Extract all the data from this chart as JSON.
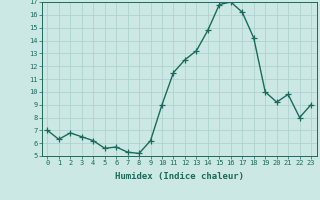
{
  "xlabel": "Humidex (Indice chaleur)",
  "x": [
    0,
    1,
    2,
    3,
    4,
    5,
    6,
    7,
    8,
    9,
    10,
    11,
    12,
    13,
    14,
    15,
    16,
    17,
    18,
    19,
    20,
    21,
    22,
    23
  ],
  "y": [
    7.0,
    6.3,
    6.8,
    6.5,
    6.2,
    5.6,
    5.7,
    5.3,
    5.2,
    6.2,
    9.0,
    11.5,
    12.5,
    13.2,
    14.8,
    16.8,
    17.0,
    16.2,
    14.2,
    10.0,
    9.2,
    9.8,
    8.0,
    9.0
  ],
  "ylim": [
    5,
    17
  ],
  "yticks": [
    5,
    6,
    7,
    8,
    9,
    10,
    11,
    12,
    13,
    14,
    15,
    16,
    17
  ],
  "line_color": "#1a6b5a",
  "marker": "+",
  "bg_color": "#cce8e4",
  "grid_color": "#aacfcc",
  "axis_color": "#1a6b5a",
  "label_color": "#1a6b5a",
  "tick_color": "#1a6b5a",
  "font_family": "monospace",
  "xlabel_fontsize": 6.5,
  "tick_fontsize": 5.0,
  "linewidth": 1.0,
  "markersize": 4.0,
  "markeredgewidth": 0.9
}
